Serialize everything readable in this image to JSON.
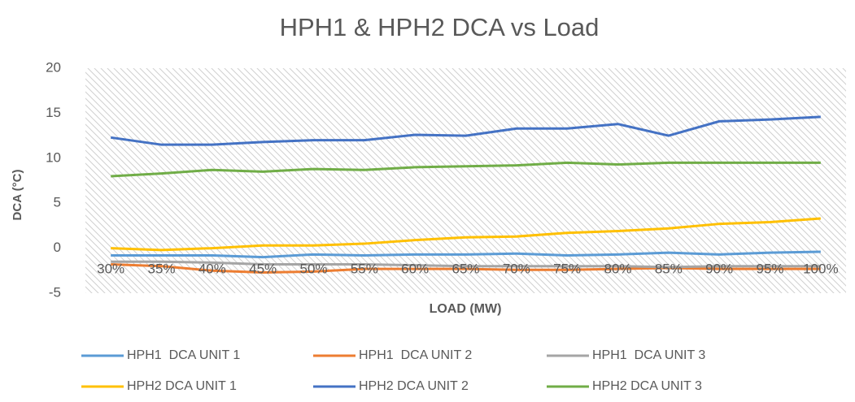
{
  "chart_data": {
    "type": "line",
    "title": "HPH1 & HPH2 DCA vs Load",
    "x_label": "LOAD (MW)",
    "y_label": "DCA (°C)",
    "categories": [
      "30%",
      "35%",
      "40%",
      "45%",
      "50%",
      "55%",
      "60%",
      "65%",
      "70%",
      "75%",
      "80%",
      "85%",
      "90%",
      "95%",
      "100%"
    ],
    "ylim": [
      -5,
      20
    ],
    "yticks": [
      -5,
      0,
      5,
      10,
      15,
      20
    ],
    "grid": false,
    "legend": "bottom",
    "series": [
      {
        "name": "HPH1  DCA UNIT 1",
        "color": "#5b9bd5",
        "values": [
          -0.8,
          -0.8,
          -0.8,
          -1,
          -0.7,
          -0.8,
          -0.7,
          -0.7,
          -0.6,
          -0.8,
          -0.7,
          -0.5,
          -0.7,
          -0.5,
          -0.4
        ]
      },
      {
        "name": "HPH1  DCA UNIT 2",
        "color": "#ed7d31",
        "values": [
          -1.8,
          -2,
          -2.5,
          -2.7,
          -2.6,
          -2.3,
          -2.3,
          -2.3,
          -2.4,
          -2.4,
          -2.3,
          -2.2,
          -2.3,
          -2.3,
          -2.3
        ]
      },
      {
        "name": "HPH1  DCA UNIT 3",
        "color": "#a5a5a5",
        "values": [
          -1.5,
          -1.5,
          -1.6,
          -1.8,
          -1.8,
          -1.8,
          -1.9,
          -2,
          -2,
          -2,
          -2,
          -2.1,
          -2,
          -2,
          -2
        ]
      },
      {
        "name": "HPH2 DCA UNIT 1",
        "color": "#ffc000",
        "values": [
          0,
          -0.2,
          0,
          0.3,
          0.3,
          0.5,
          0.9,
          1.2,
          1.3,
          1.7,
          1.9,
          2.2,
          2.7,
          2.9,
          3.3
        ]
      },
      {
        "name": "HPH2 DCA UNIT 2",
        "color": "#4472c4",
        "values": [
          12.3,
          11.5,
          11.5,
          11.8,
          12,
          12,
          12.6,
          12.5,
          13.3,
          13.3,
          13.8,
          12.5,
          14.1,
          14.3,
          14.6
        ]
      },
      {
        "name": "HPH2 DCA UNIT 3",
        "color": "#70ad47",
        "values": [
          8,
          8.3,
          8.7,
          8.5,
          8.8,
          8.7,
          9,
          9.1,
          9.2,
          9.5,
          9.3,
          9.5,
          9.5,
          9.5,
          9.5
        ]
      }
    ]
  }
}
